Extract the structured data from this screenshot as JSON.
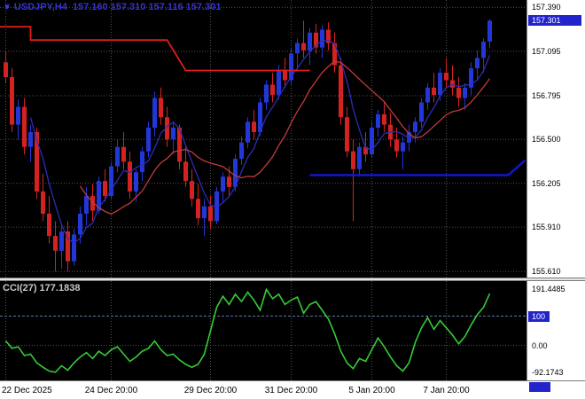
{
  "header": {
    "dropdown_icon": "▼",
    "symbol_period": "USDJPY,H4",
    "ohlc": "157.160 157.310 157.116 157.301"
  },
  "indicator_label": "CCI(27) 177.1838",
  "colors": {
    "background": "#000000",
    "bull": "#2337d8",
    "bear": "#d42222",
    "grid": "#525252",
    "badge_bg": "#2323cc",
    "level_line": "#5878b0",
    "cci_line": "#35cc35"
  },
  "main_axis": {
    "labels": [
      {
        "text": "157.390",
        "price": 157.39
      },
      {
        "text": "157.095",
        "price": 157.095
      },
      {
        "text": "156.795",
        "price": 156.795
      },
      {
        "text": "156.500",
        "price": 156.5
      },
      {
        "text": "156.205",
        "price": 156.205
      },
      {
        "text": "155.910",
        "price": 155.91
      },
      {
        "text": "155.610",
        "price": 155.61
      }
    ],
    "current": {
      "text": "157.301",
      "price": 157.301
    }
  },
  "cci_axis": {
    "labels": [
      {
        "text": "191.4485",
        "value": 191.4485
      },
      {
        "text": "0.00",
        "value": 0
      },
      {
        "text": "-92.1743",
        "value": -92.1743
      }
    ],
    "level_badge": {
      "text": "100",
      "value": 100
    }
  },
  "time_axis": [
    {
      "text": "22 Dec 2025",
      "idx": 0,
      "align": "left"
    },
    {
      "text": "24 Dec 20:00",
      "idx": 17
    },
    {
      "text": "29 Dec 20:00",
      "idx": 33
    },
    {
      "text": "31 Dec 20:00",
      "idx": 46
    },
    {
      "text": "5 Jan 20:00",
      "idx": 59
    },
    {
      "text": "7 Jan 20:00",
      "idx": 71
    }
  ],
  "chart_data": {
    "type": "candlestick",
    "symbol": "USDJPY",
    "timeframe": "H4",
    "title": "USDJPY,H4 157.160 157.310 157.116 157.301",
    "y_range_main": [
      155.57,
      157.44
    ],
    "y_range_cci": [
      -120,
      220
    ],
    "candles": [
      [
        157.02,
        157.1,
        156.88,
        156.92
      ],
      [
        156.92,
        156.98,
        156.55,
        156.6
      ],
      [
        156.6,
        156.77,
        156.5,
        156.72
      ],
      [
        156.72,
        156.78,
        156.4,
        156.45
      ],
      [
        156.45,
        156.6,
        156.35,
        156.55
      ],
      [
        156.55,
        156.58,
        156.1,
        156.15
      ],
      [
        156.15,
        156.27,
        155.95,
        156.0
      ],
      [
        156.0,
        156.12,
        155.8,
        155.85
      ],
      [
        155.85,
        155.95,
        155.61,
        155.75
      ],
      [
        155.75,
        155.92,
        155.63,
        155.88
      ],
      [
        155.88,
        155.95,
        155.61,
        155.68
      ],
      [
        155.68,
        155.9,
        155.65,
        155.86
      ],
      [
        155.86,
        156.05,
        155.8,
        156.0
      ],
      [
        156.0,
        156.18,
        155.92,
        156.12
      ],
      [
        156.12,
        156.2,
        155.95,
        156.02
      ],
      [
        156.02,
        156.25,
        156.0,
        156.22
      ],
      [
        156.22,
        156.3,
        156.08,
        156.12
      ],
      [
        156.12,
        156.35,
        156.1,
        156.32
      ],
      [
        156.32,
        156.5,
        156.28,
        156.45
      ],
      [
        156.45,
        156.55,
        156.3,
        156.35
      ],
      [
        156.35,
        156.42,
        156.1,
        156.15
      ],
      [
        156.15,
        156.3,
        156.08,
        156.28
      ],
      [
        156.28,
        156.45,
        156.22,
        156.42
      ],
      [
        156.42,
        156.62,
        156.38,
        156.58
      ],
      [
        156.58,
        156.82,
        156.52,
        156.78
      ],
      [
        156.78,
        156.85,
        156.6,
        156.65
      ],
      [
        156.65,
        156.72,
        156.45,
        156.5
      ],
      [
        156.5,
        156.62,
        156.4,
        156.58
      ],
      [
        156.58,
        156.6,
        156.3,
        156.35
      ],
      [
        156.35,
        156.45,
        156.18,
        156.22
      ],
      [
        156.22,
        156.3,
        156.05,
        156.1
      ],
      [
        156.1,
        156.2,
        155.92,
        155.97
      ],
      [
        155.97,
        156.1,
        155.85,
        156.05
      ],
      [
        156.05,
        156.12,
        155.9,
        155.95
      ],
      [
        155.95,
        156.18,
        155.93,
        156.15
      ],
      [
        156.15,
        156.28,
        156.08,
        156.25
      ],
      [
        156.25,
        156.32,
        156.12,
        156.18
      ],
      [
        156.18,
        156.4,
        156.15,
        156.37
      ],
      [
        156.37,
        156.52,
        156.33,
        156.48
      ],
      [
        156.48,
        156.65,
        156.44,
        156.62
      ],
      [
        156.62,
        156.7,
        156.5,
        156.55
      ],
      [
        156.55,
        156.78,
        156.52,
        156.75
      ],
      [
        156.75,
        156.9,
        156.7,
        156.87
      ],
      [
        156.87,
        156.95,
        156.75,
        156.8
      ],
      [
        156.8,
        157.0,
        156.77,
        156.97
      ],
      [
        156.97,
        157.05,
        156.85,
        156.9
      ],
      [
        156.9,
        157.12,
        156.87,
        157.08
      ],
      [
        157.08,
        157.18,
        156.98,
        157.15
      ],
      [
        157.15,
        157.3,
        157.05,
        157.1
      ],
      [
        157.1,
        157.25,
        157.0,
        157.22
      ],
      [
        157.22,
        157.28,
        157.08,
        157.12
      ],
      [
        157.12,
        157.27,
        157.05,
        157.24
      ],
      [
        157.24,
        157.29,
        157.1,
        157.15
      ],
      [
        157.15,
        157.22,
        156.95,
        157.0
      ],
      [
        157.0,
        157.05,
        156.6,
        156.65
      ],
      [
        156.65,
        156.72,
        156.38,
        156.42
      ],
      [
        156.42,
        156.5,
        155.95,
        156.3
      ],
      [
        156.3,
        156.48,
        156.25,
        156.45
      ],
      [
        156.45,
        156.55,
        156.35,
        156.4
      ],
      [
        156.4,
        156.62,
        156.38,
        156.58
      ],
      [
        156.58,
        156.7,
        156.52,
        156.67
      ],
      [
        156.67,
        156.75,
        156.55,
        156.6
      ],
      [
        156.6,
        156.68,
        156.45,
        156.5
      ],
      [
        156.5,
        156.58,
        156.38,
        156.42
      ],
      [
        156.42,
        156.52,
        156.3,
        156.48
      ],
      [
        156.48,
        156.6,
        156.42,
        156.55
      ],
      [
        156.55,
        156.65,
        156.48,
        156.62
      ],
      [
        156.62,
        156.78,
        156.58,
        156.75
      ],
      [
        156.75,
        156.88,
        156.7,
        156.85
      ],
      [
        156.85,
        156.95,
        156.75,
        156.8
      ],
      [
        156.8,
        156.98,
        156.76,
        156.95
      ],
      [
        156.95,
        157.05,
        156.85,
        156.9
      ],
      [
        156.9,
        157.0,
        156.8,
        156.85
      ],
      [
        156.85,
        156.92,
        156.72,
        156.78
      ],
      [
        156.78,
        156.88,
        156.7,
        156.85
      ],
      [
        156.85,
        157.02,
        156.8,
        156.98
      ],
      [
        156.98,
        157.1,
        156.9,
        157.05
      ],
      [
        157.05,
        157.18,
        156.95,
        157.16
      ],
      [
        157.16,
        157.31,
        157.116,
        157.301
      ]
    ],
    "overlays": {
      "ma_fast": {
        "period": 5,
        "color": "#2c2cb8"
      },
      "ma_slow": {
        "period": 13,
        "color": "#c23b3b"
      },
      "resistance_line": {
        "color": "#e01c1c",
        "points": [
          [
            -1,
            157.26
          ],
          [
            4,
            157.26
          ],
          [
            4,
            157.17
          ],
          [
            26,
            157.17
          ],
          [
            29,
            156.965
          ],
          [
            49,
            156.965
          ]
        ]
      },
      "support_line": {
        "color": "#1414cc",
        "points": [
          [
            49,
            156.26
          ],
          [
            81,
            156.26
          ],
          [
            83.7,
            156.36
          ]
        ]
      }
    },
    "cci": {
      "period": 27,
      "last": 177.1838,
      "values": [
        15,
        -10,
        -5,
        -35,
        -30,
        -60,
        -75,
        -88,
        -92.17,
        -70,
        -85,
        -60,
        -40,
        -25,
        -45,
        -20,
        -35,
        -15,
        -5,
        -30,
        -55,
        -40,
        -20,
        -10,
        15,
        -15,
        -35,
        -30,
        -50,
        -65,
        -75,
        -65,
        -30,
        50,
        130,
        168,
        140,
        175,
        150,
        182,
        155,
        120,
        191.45,
        160,
        175,
        140,
        155,
        165,
        110,
        140,
        150,
        120,
        90,
        40,
        -20,
        -60,
        -80,
        -45,
        -55,
        -15,
        25,
        -5,
        -40,
        -70,
        -88,
        -60,
        10,
        60,
        95,
        55,
        85,
        60,
        35,
        5,
        30,
        70,
        105,
        130,
        177.1838
      ]
    }
  }
}
